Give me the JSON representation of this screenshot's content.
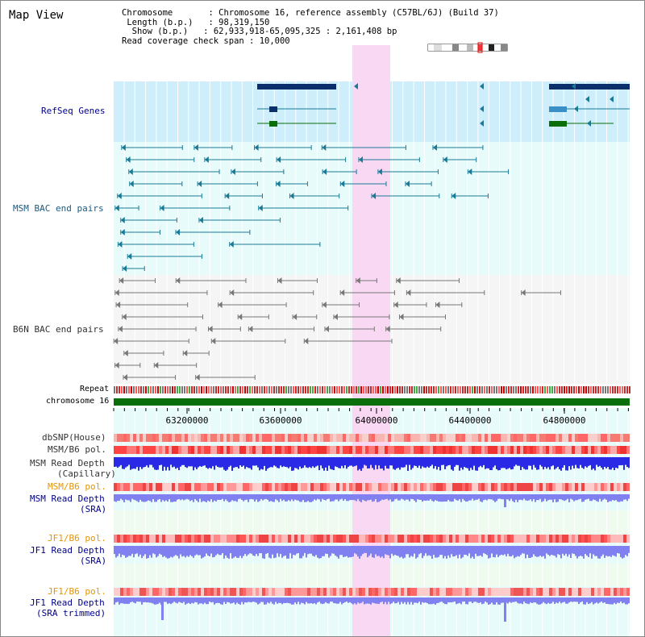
{
  "title": "Map View",
  "info": {
    "chromosome_key": "Chromosome",
    "chromosome_val": "Chromosome 16, reference assembly (C57BL/6J) (Build 37)",
    "length_key": "Length (b.p.)",
    "length_val": "98,319,150",
    "show_key": "Show (b.p.)",
    "show_val": "62,933,918-65,095,325 : 2,161,408 bp",
    "span_key": "Read coverage check span",
    "span_val": "10,000"
  },
  "tracks": {
    "refseq": "RefSeq Genes",
    "msm_bac": "MSM BAC end pairs",
    "b6n_bac": "B6N BAC end pairs",
    "repeat": "Repeat",
    "chromosome": "chromosome 16",
    "dbsnp": "dbSNP(House)",
    "msm_b6_pol1": "MSM/B6 pol.",
    "msm_depth_cap_1": "MSM Read Depth",
    "msm_depth_cap_2": "(Capillary)",
    "msm_b6_pol2": "MSM/B6 pol.",
    "msm_depth_sra_1": "MSM Read Depth",
    "msm_depth_sra_2": "(SRA)",
    "jf1_b6_pol1": "JF1/B6 pol.",
    "jf1_depth_sra_1": "JF1 Read Depth",
    "jf1_depth_sra_2": "(SRA)",
    "jf1_b6_pol2": "JF1/B6 pol.",
    "jf1_depth_tr_1": "JF1 Read Depth",
    "jf1_depth_tr_2": "(SRA trimmed)"
  },
  "axis": {
    "ticks": [
      "63200000",
      "63600000",
      "64000000",
      "64400000",
      "64800000"
    ]
  },
  "colors": {
    "refseq_bg": "#cdeefa",
    "msm_bg": "#e8fbfb",
    "highlight": "#f9d8f3",
    "msm_glyph": "#1a7a95",
    "b6n_glyph": "#777777",
    "gene_dark": "#0b2f6a",
    "gene_green": "#0a6e0a",
    "chrom_bar": "#0a6e0a",
    "depth_cap": "#2a2ae6",
    "depth_sra": "#8080f0",
    "label_blue": "#00008b",
    "label_gray": "#333333",
    "label_orange": "#e69500"
  }
}
